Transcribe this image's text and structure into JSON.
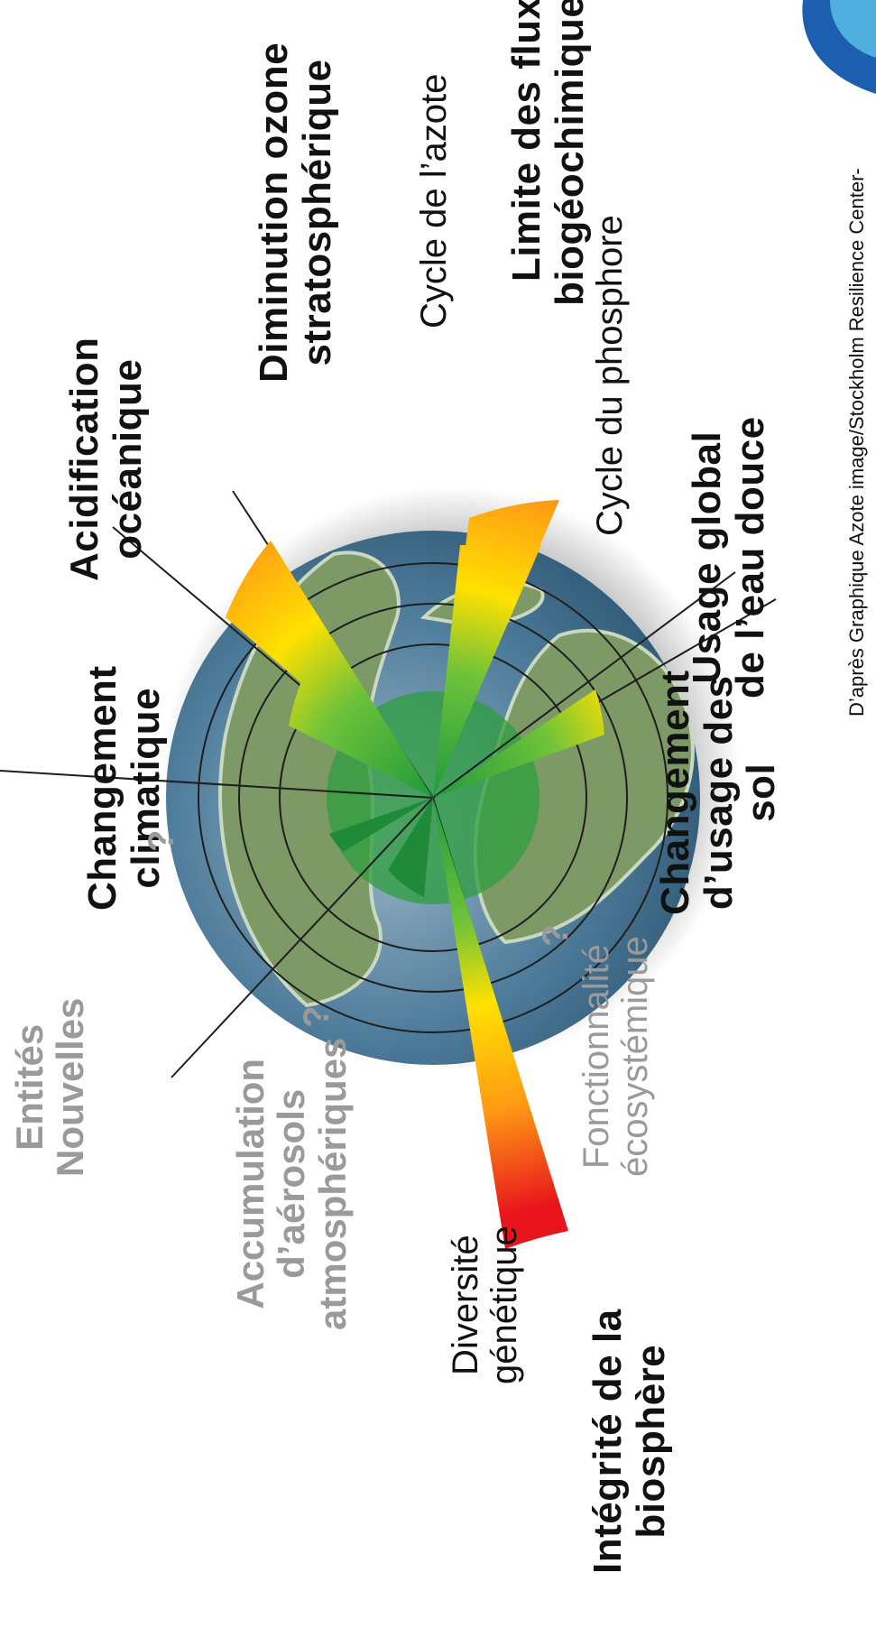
{
  "boundaries": {
    "climate": [
      "Changement",
      "climatique"
    ],
    "ocean": [
      "Acidification",
      "océanique"
    ],
    "ozone": [
      "Diminution ozone",
      "stratosphérique"
    ],
    "biogeo": [
      "Limite des flux",
      "biogéochimiques"
    ],
    "nitrogen": "Cycle de l’azote",
    "phosphorus": "Cycle du phosphore",
    "freshwater": [
      "Usage global",
      "de l’eau douce"
    ],
    "landuse": [
      "Changement",
      "d’usage des",
      "sol"
    ],
    "biosphere": [
      "Intégrité de la",
      "biosphère"
    ],
    "genetic": [
      "Diversité",
      "génétique"
    ],
    "functional": [
      "Fonctionnalité",
      "écosystémique"
    ],
    "aerosols": [
      "Accumulation",
      "d’aérosols",
      "atmosphériques"
    ],
    "entities": [
      "Entités",
      "Nouvelles"
    ],
    "unknown": "?"
  },
  "credit": "D’après Graphique Azote image/Stockholm Resilience Center-",
  "colors": {
    "safe": "#1e9a3c",
    "warn": "#ffe100",
    "danger": "#e8141c",
    "ocean": "#3e6e90",
    "land": "#7d9a66"
  },
  "wedge_levels": {
    "climate": "zone of increasing risk",
    "biogeochemical_nitrogen": "high risk",
    "biogeochemical_phosphorus": "high risk",
    "land_use": "zone of increasing risk",
    "biosphere_genetic": "high risk",
    "ocean_acidification": "safe",
    "ozone": "safe",
    "freshwater": "safe",
    "aerosols": "not quantified",
    "novel_entities": "not quantified",
    "functional_diversity": "not quantified"
  }
}
